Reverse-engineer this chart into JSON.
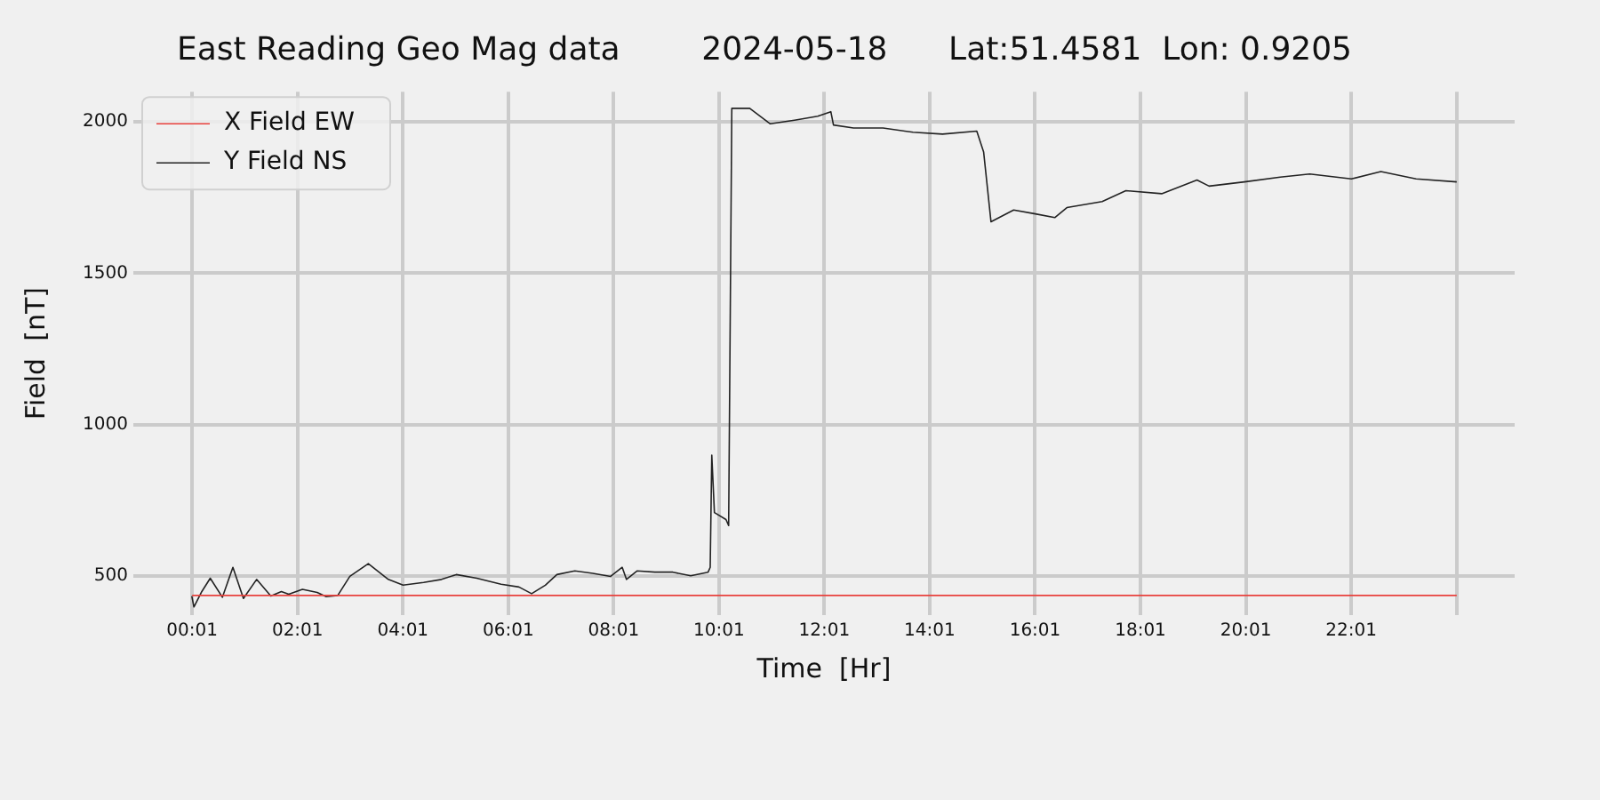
{
  "chart_data": {
    "type": "line",
    "title": "East Reading Geo Mag data        2024-05-18      Lat:51.4581  Lon: 0.9205",
    "xlabel": "Time  [Hr]",
    "ylabel": "Field  [nT]",
    "xlim": [
      -1.1,
      25.12
    ],
    "ylim": [
      370,
      2100
    ],
    "xticks": [
      {
        "value": 0.0167,
        "label": "00:01"
      },
      {
        "value": 2.0167,
        "label": "02:01"
      },
      {
        "value": 4.0167,
        "label": "04:01"
      },
      {
        "value": 6.0167,
        "label": "06:01"
      },
      {
        "value": 8.0167,
        "label": "08:01"
      },
      {
        "value": 10.0167,
        "label": "10:01"
      },
      {
        "value": 12.0167,
        "label": "12:01"
      },
      {
        "value": 14.0167,
        "label": "14:01"
      },
      {
        "value": 16.0167,
        "label": "16:01"
      },
      {
        "value": 18.0167,
        "label": "18:01"
      },
      {
        "value": 20.0167,
        "label": "20:01"
      },
      {
        "value": 22.0167,
        "label": "22:01"
      },
      {
        "value": 24.0167,
        "label": null
      }
    ],
    "yticks": [
      500,
      1000,
      1500,
      2000
    ],
    "grid": true,
    "legend": "top left",
    "marker": "none",
    "line_style": "solid",
    "series": [
      {
        "name": "X Field EW",
        "color": "#e8413c",
        "x": [
          0.0167,
          24.02
        ],
        "values": [
          435,
          435
        ]
      },
      {
        "name": "Y Field NS",
        "color": "#222222",
        "x": [
          0.01,
          0.05,
          0.2,
          0.36,
          0.59,
          0.79,
          0.99,
          1.24,
          1.51,
          1.71,
          1.85,
          2.11,
          2.39,
          2.56,
          2.78,
          3.01,
          3.36,
          3.74,
          4.02,
          4.41,
          4.75,
          5.03,
          5.42,
          5.88,
          6.22,
          6.46,
          6.72,
          6.94,
          7.28,
          7.62,
          7.96,
          8.18,
          8.26,
          8.46,
          8.8,
          9.14,
          9.48,
          9.81,
          9.85,
          9.88,
          9.93,
          10.15,
          10.2,
          10.26,
          10.6,
          10.99,
          11.45,
          11.89,
          12.14,
          12.19,
          12.57,
          13.13,
          13.7,
          14.26,
          14.91,
          15.04,
          15.18,
          15.61,
          16.0,
          16.39,
          16.62,
          17.29,
          17.74,
          18.42,
          19.09,
          19.32,
          19.99,
          20.67,
          21.23,
          22.02,
          22.58,
          23.25,
          24.02
        ],
        "values": [
          433,
          397,
          448,
          492,
          429,
          528,
          425,
          488,
          433,
          448,
          439,
          455,
          445,
          431,
          435,
          498,
          540,
          488,
          469,
          478,
          488,
          504,
          492,
          472,
          463,
          441,
          469,
          504,
          516,
          508,
          498,
          528,
          488,
          516,
          512,
          512,
          500,
          512,
          528,
          899,
          709,
          686,
          666,
          2045,
          2045,
          1994,
          2006,
          2019,
          2034,
          1990,
          1980,
          1980,
          1966,
          1960,
          1970,
          1901,
          1670,
          1709,
          1697,
          1684,
          1717,
          1737,
          1773,
          1763,
          1808,
          1788,
          1802,
          1818,
          1828,
          1812,
          1836,
          1812,
          1802
        ]
      }
    ]
  }
}
